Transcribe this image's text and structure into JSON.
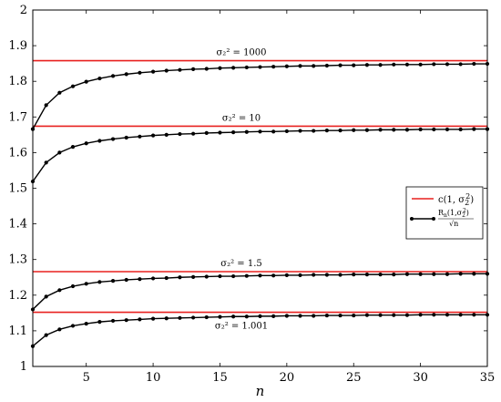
{
  "chart_data": {
    "type": "line",
    "title": "",
    "xlabel": "n",
    "ylabel": "",
    "xlim": [
      1,
      35
    ],
    "ylim": [
      1,
      2
    ],
    "x_ticks": [
      5,
      10,
      15,
      20,
      25,
      30,
      35
    ],
    "y_ticks": [
      1,
      1.1,
      1.2,
      1.3,
      1.4,
      1.5,
      1.6,
      1.7,
      1.8,
      1.9,
      2
    ],
    "grid": false,
    "legend_position": "right",
    "legend": {
      "red_line": "c(1, σ₂²)",
      "black_line": "R_n(1,σ₂²)/√n"
    },
    "colors": {
      "limit": "#e8201f",
      "series": "#000000"
    },
    "x": [
      1,
      2,
      3,
      4,
      5,
      6,
      7,
      8,
      9,
      10,
      11,
      12,
      13,
      14,
      15,
      16,
      17,
      18,
      19,
      20,
      21,
      22,
      23,
      24,
      25,
      26,
      27,
      28,
      29,
      30,
      31,
      32,
      33,
      34,
      35
    ],
    "series": [
      {
        "annotation": "σ₂² = 1000",
        "limit": 1.858,
        "values": [
          1.666,
          1.733,
          1.768,
          1.786,
          1.799,
          1.808,
          1.815,
          1.82,
          1.824,
          1.827,
          1.83,
          1.832,
          1.834,
          1.835,
          1.837,
          1.838,
          1.839,
          1.84,
          1.841,
          1.842,
          1.843,
          1.843,
          1.844,
          1.845,
          1.845,
          1.846,
          1.846,
          1.847,
          1.847,
          1.847,
          1.848,
          1.848,
          1.848,
          1.849,
          1.849
        ]
      },
      {
        "annotation": "σ₂² = 10",
        "limit": 1.674,
        "values": [
          1.519,
          1.572,
          1.6,
          1.616,
          1.626,
          1.633,
          1.638,
          1.642,
          1.645,
          1.648,
          1.65,
          1.652,
          1.653,
          1.655,
          1.656,
          1.657,
          1.658,
          1.659,
          1.659,
          1.66,
          1.661,
          1.661,
          1.662,
          1.662,
          1.663,
          1.663,
          1.664,
          1.664,
          1.664,
          1.665,
          1.665,
          1.665,
          1.665,
          1.666,
          1.666
        ]
      },
      {
        "annotation": "σ₂² = 1.5",
        "limit": 1.266,
        "values": [
          1.16,
          1.196,
          1.214,
          1.225,
          1.232,
          1.237,
          1.24,
          1.243,
          1.245,
          1.247,
          1.248,
          1.25,
          1.251,
          1.252,
          1.253,
          1.253,
          1.254,
          1.255,
          1.255,
          1.256,
          1.256,
          1.257,
          1.257,
          1.257,
          1.258,
          1.258,
          1.258,
          1.258,
          1.259,
          1.259,
          1.259,
          1.259,
          1.26,
          1.26,
          1.26
        ]
      },
      {
        "annotation": "σ₂² = 1.001",
        "limit": 1.152,
        "values": [
          1.057,
          1.088,
          1.104,
          1.114,
          1.12,
          1.125,
          1.128,
          1.13,
          1.132,
          1.134,
          1.135,
          1.136,
          1.137,
          1.138,
          1.139,
          1.14,
          1.14,
          1.141,
          1.141,
          1.142,
          1.142,
          1.142,
          1.143,
          1.143,
          1.143,
          1.144,
          1.144,
          1.144,
          1.144,
          1.145,
          1.145,
          1.145,
          1.145,
          1.145,
          1.145
        ]
      }
    ]
  }
}
